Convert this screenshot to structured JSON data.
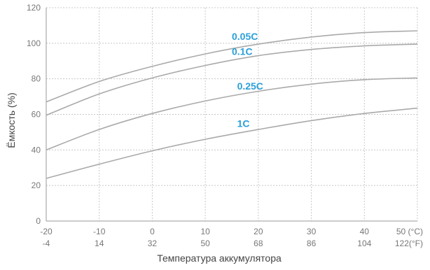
{
  "chart_data": {
    "type": "line",
    "title": "",
    "xlabel": "Температура аккумулятора",
    "ylabel": "Ёмкость (%)",
    "xlim": [
      -20,
      50
    ],
    "ylim": [
      0,
      120
    ],
    "grid": true,
    "x_ticks": [
      -20,
      -10,
      0,
      10,
      20,
      30,
      40,
      50
    ],
    "x_tick_labels_c": [
      "-20",
      "-10",
      "0",
      "10",
      "20",
      "30",
      "40",
      "50 (°C)"
    ],
    "x_tick_labels_f": [
      "-4",
      "14",
      "32",
      "50",
      "68",
      "86",
      "104",
      "122(°F)"
    ],
    "y_ticks": [
      0,
      20,
      40,
      60,
      80,
      100,
      120
    ],
    "y_tick_labels": [
      "0",
      "20",
      "40",
      "60",
      "80",
      "100",
      "120"
    ],
    "x": [
      -20,
      -10,
      0,
      10,
      20,
      30,
      40,
      50
    ],
    "series": [
      {
        "label": "0.05C",
        "values": [
          67,
          78.5,
          87,
          94,
          99.5,
          103.5,
          106,
          107
        ],
        "label_at": [
          15,
          102
        ]
      },
      {
        "label": "0.1C",
        "values": [
          59.5,
          71.5,
          80.5,
          87.5,
          93,
          96.5,
          98.5,
          99.5
        ],
        "label_at": [
          15,
          93.5
        ]
      },
      {
        "label": "0.25C",
        "values": [
          40,
          51.5,
          60.5,
          67.5,
          73,
          77,
          79.5,
          80.5
        ],
        "label_at": [
          16,
          74
        ]
      },
      {
        "label": "1C",
        "values": [
          24,
          32,
          39.5,
          46,
          51.5,
          56.5,
          60.5,
          63.5
        ],
        "label_at": [
          16,
          53
        ]
      }
    ],
    "colors": {
      "line": "#aaaaaa",
      "series_label": "#2b9fd8",
      "grid": "#c8c8c8",
      "axis": "#999999",
      "tick_text": "#777777",
      "axis_label": "#444444"
    }
  }
}
